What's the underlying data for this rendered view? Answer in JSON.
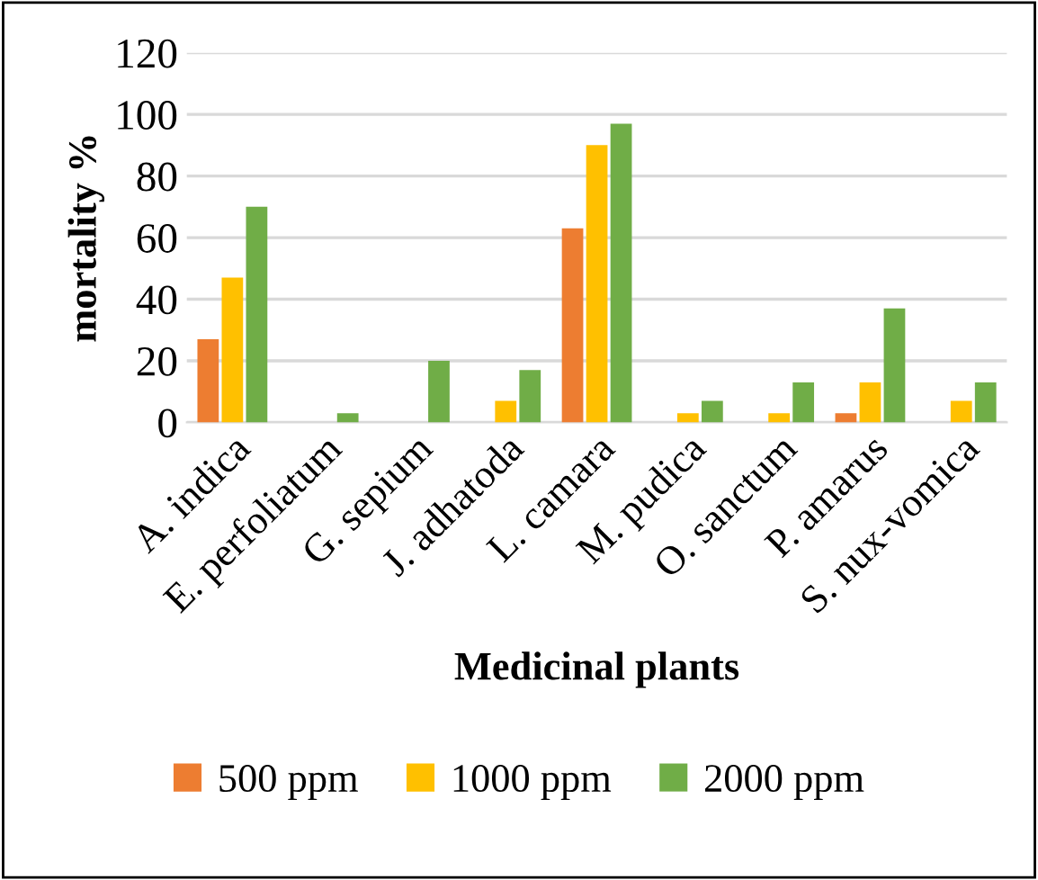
{
  "chart_data": {
    "type": "bar",
    "xlabel": "Medicinal plants",
    "ylabel": "mortality %",
    "categories": [
      "A. indica",
      "E. perfoliatum",
      "G. sepium",
      "J. adhatoda",
      "L. camara",
      "M. pudica",
      "O. sanctum",
      "P. amarus",
      "S. nux-vomica"
    ],
    "series": [
      {
        "name": "500 ppm",
        "color": "#ed7d31",
        "values": [
          27,
          0,
          0,
          0,
          63,
          0,
          0,
          3,
          0
        ]
      },
      {
        "name": "1000 ppm",
        "color": "#ffc000",
        "values": [
          47,
          0,
          0,
          7,
          90,
          3,
          3,
          13,
          7
        ]
      },
      {
        "name": "2000 ppm",
        "color": "#70ad47",
        "values": [
          70,
          3,
          20,
          17,
          97,
          7,
          13,
          37,
          13
        ]
      }
    ],
    "ylim": [
      0,
      120
    ],
    "yticks": [
      0,
      20,
      40,
      60,
      80,
      100,
      120
    ],
    "grid": "y",
    "legend": "bottom"
  }
}
